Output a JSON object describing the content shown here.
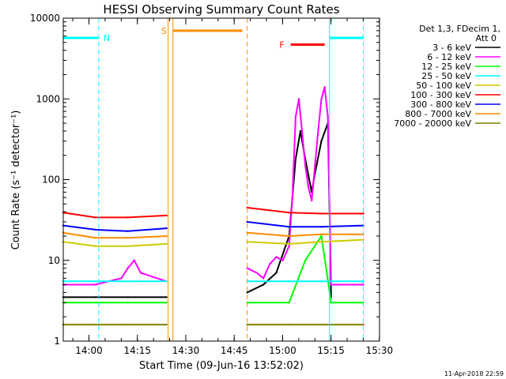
{
  "chart_data": {
    "type": "line",
    "title": "HESSI Observing Summary Count Rates",
    "xlabel": "Start Time (09-Jun-16 13:52:02)",
    "ylabel": "Count Rate (s⁻¹ detector⁻¹)",
    "y_scale": "log",
    "ylim": [
      1,
      10000
    ],
    "xlim_minutes_from_start": [
      0,
      98
    ],
    "x_tick_labels": [
      "14:00",
      "14:15",
      "14:30",
      "14:45",
      "15:00",
      "15:15",
      "15:30"
    ],
    "x_tick_minutes": [
      7.97,
      22.97,
      37.97,
      52.97,
      67.97,
      82.97,
      97.97
    ],
    "y_tick_labels": [
      "1",
      "10",
      "100",
      "1000",
      "10000"
    ],
    "y_tick_values": [
      1,
      10,
      100,
      1000,
      10000
    ],
    "legend_title": "Det 1,3, FDecim 1,",
    "legend_subtitle": "Att 0",
    "legend_position": "right",
    "data_gap_minutes": [
      32.5,
      57.0
    ],
    "series": [
      {
        "name": "3 - 6 keV",
        "color": "#000000",
        "x_minutes": [
          0,
          10,
          20,
          32,
          57,
          62,
          66,
          70,
          72,
          73.5,
          75,
          77,
          78,
          80,
          82,
          83
        ],
        "values": [
          3.5,
          3.5,
          3.5,
          3.5,
          4,
          5,
          7,
          20,
          180,
          400,
          180,
          70,
          120,
          300,
          500,
          3.5
        ]
      },
      {
        "name": "6 - 12 keV",
        "color": "#ff00ff",
        "x_minutes": [
          0,
          10,
          18,
          20,
          22,
          24,
          32,
          57,
          60,
          62,
          64,
          66,
          68,
          70,
          71,
          72,
          73,
          74,
          75,
          76,
          77,
          78,
          79,
          80,
          81,
          82,
          83,
          85,
          90,
          93
        ],
        "values": [
          5,
          5,
          6,
          8,
          10,
          7,
          5.5,
          8,
          7,
          6,
          9,
          11,
          10,
          15,
          60,
          600,
          1000,
          400,
          150,
          80,
          55,
          150,
          400,
          1000,
          1400,
          600,
          5,
          5,
          5,
          5
        ]
      },
      {
        "name": "12 - 25 keV",
        "color": "#00ff00",
        "x_minutes": [
          0,
          10,
          20,
          32,
          57,
          70,
          75,
          80,
          83,
          90,
          93
        ],
        "values": [
          3,
          3,
          3,
          3,
          3,
          3,
          10,
          20,
          3,
          3,
          3
        ]
      },
      {
        "name": "25 - 50 keV",
        "color": "#00ffff",
        "x_minutes": [
          0,
          10,
          20,
          32,
          57,
          70,
          80,
          93
        ],
        "values": [
          5.5,
          5.5,
          5.5,
          5.5,
          5.5,
          5.5,
          5.5,
          5.5
        ]
      },
      {
        "name": "50 - 100 keV",
        "color": "#cccc00",
        "x_minutes": [
          0,
          10,
          20,
          32,
          57,
          70,
          80,
          93
        ],
        "values": [
          17,
          15,
          15,
          16,
          17,
          16,
          17,
          18
        ]
      },
      {
        "name": "100 - 300 keV",
        "color": "#ff0000",
        "x_minutes": [
          0,
          10,
          20,
          32,
          57,
          70,
          80,
          93
        ],
        "values": [
          39,
          34,
          34,
          36,
          45,
          39,
          38,
          38
        ]
      },
      {
        "name": "300 - 800 keV",
        "color": "#0000ff",
        "x_minutes": [
          0,
          10,
          20,
          32,
          57,
          70,
          80,
          93
        ],
        "values": [
          27,
          24,
          23,
          25,
          30,
          26,
          26,
          27
        ]
      },
      {
        "name": "800 - 7000 keV",
        "color": "#ff8c00",
        "x_minutes": [
          0,
          10,
          20,
          32,
          57,
          70,
          80,
          93
        ],
        "values": [
          22,
          19,
          19,
          20,
          22,
          20,
          21,
          21
        ]
      },
      {
        "name": "7000 - 20000 keV",
        "color": "#808000",
        "x_minutes": [
          0,
          10,
          20,
          32,
          57,
          70,
          80,
          93
        ],
        "values": [
          1.6,
          1.6,
          1.6,
          1.6,
          1.6,
          1.6,
          1.6,
          1.6
        ]
      }
    ],
    "flag_bars": [
      {
        "label": "N",
        "color": "#00ffff",
        "start_minute": 0,
        "end_minute": 11,
        "value": 5700
      },
      {
        "label": "N",
        "color": "#00ffff",
        "start_minute": 82.5,
        "end_minute": 93,
        "value": 5700
      },
      {
        "label": "S",
        "color": "#ff8c00",
        "start_minute": 34.0,
        "end_minute": 55.5,
        "value": 7000
      },
      {
        "label": "F",
        "color": "#ff0000",
        "start_minute": 70.5,
        "end_minute": 81.0,
        "value": 4700
      }
    ],
    "vertical_lines": [
      {
        "minute": 0,
        "color": "#00ffff",
        "style": "solid"
      },
      {
        "minute": 11,
        "color": "#00ffff",
        "style": "dashed"
      },
      {
        "minute": 32.5,
        "color": "#ff8c00",
        "style": "solid"
      },
      {
        "minute": 34.0,
        "color": "#ff8c00",
        "style": "solid"
      },
      {
        "minute": 57.0,
        "color": "#ff8c00",
        "style": "dashed"
      },
      {
        "minute": 82.5,
        "color": "#00ffff",
        "style": "solid"
      },
      {
        "minute": 93,
        "color": "#00ffff",
        "style": "dashed"
      }
    ],
    "footer_timestamp": "11-Apr-2018 22:59"
  }
}
